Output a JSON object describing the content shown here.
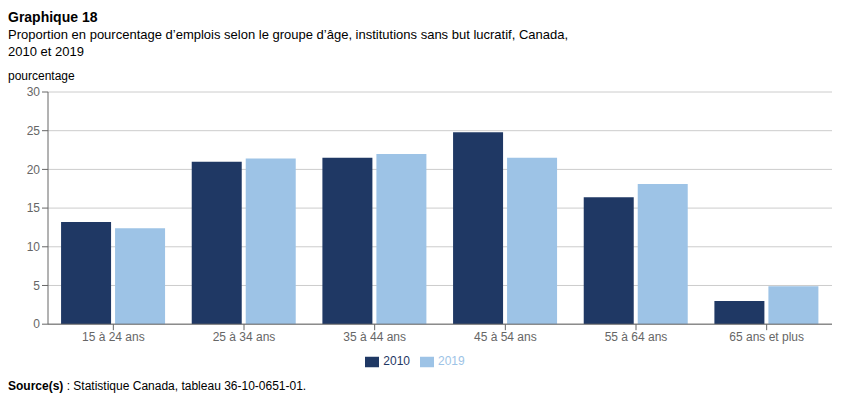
{
  "chart_data": {
    "type": "bar",
    "title": "Graphique 18",
    "subtitle": [
      "Proportion en pourcentage d’emplois selon le groupe d’âge, institutions sans but lucratif, Canada,",
      "2010 et 2019"
    ],
    "y_label": "pourcentage",
    "categories": [
      "15 à 24 ans",
      "25 à 34 ans",
      "35 à 44 ans",
      "45 à 54 ans",
      "55 à 64 ans",
      "65 ans et plus"
    ],
    "series": [
      {
        "name": "2010",
        "color": "#1F3864",
        "values": [
          13.2,
          21.0,
          21.5,
          24.8,
          16.4,
          3.0
        ]
      },
      {
        "name": "2019",
        "color": "#9DC3E6",
        "values": [
          12.4,
          21.4,
          22.0,
          21.5,
          18.1,
          4.9
        ]
      }
    ],
    "ylim": [
      0,
      30
    ],
    "yticks": [
      0,
      5,
      10,
      15,
      20,
      25,
      30
    ],
    "grid": true,
    "legend": "bottom",
    "annotations": [
      "Source(s) : Statistique Canada, tableau 36-10-0651-01."
    ]
  }
}
